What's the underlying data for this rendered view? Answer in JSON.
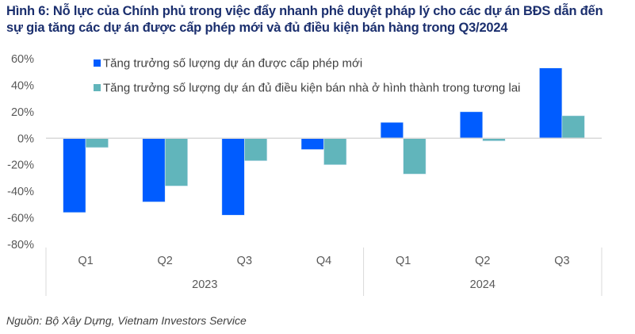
{
  "title": {
    "line1": "Hình 6: Nỗ lực của Chính phủ trong việc đẩy nhanh phê duyệt pháp lý cho các dự án BĐS dẫn đến",
    "line2": "sự gia tăng các dự án được cấp phép mới và đủ điều kiện bán hàng trong Q3/2024"
  },
  "source": "Nguồn: Bộ Xây Dựng, Vietnam Investors Service",
  "chart_data": {
    "type": "bar",
    "title": "Hình 6: Nỗ lực của Chính phủ trong việc đẩy nhanh phê duyệt pháp lý cho các dự án BĐS dẫn đến sự gia tăng các dự án được cấp phép mới và đủ điều kiện bán hàng trong Q3/2024",
    "categories": [
      "Q1",
      "Q2",
      "Q3",
      "Q4",
      "Q1",
      "Q2",
      "Q3"
    ],
    "groups": [
      {
        "label": "2023",
        "count": 4
      },
      {
        "label": "2024",
        "count": 3
      }
    ],
    "series": [
      {
        "name": "Tăng trưởng số lượng dự án được cấp phép mới",
        "color": "#005cff",
        "values": [
          -56,
          -48,
          -58,
          -8.5,
          12,
          20,
          53
        ]
      },
      {
        "name": "Tăng trưởng số lượng dự án đủ điều kiện bán nhà ở hình thành trong tương lai",
        "color": "#61b5bb",
        "values": [
          -7,
          -36,
          -17,
          -20,
          -27,
          -2,
          17
        ]
      }
    ],
    "yticks": [
      "60%",
      "40%",
      "20%",
      "0%",
      "-20%",
      "-40%",
      "-60%",
      "-80%"
    ],
    "ylim": [
      -80,
      60
    ],
    "xlabel": "",
    "ylabel": "",
    "grid": false,
    "legend": "top-left"
  }
}
